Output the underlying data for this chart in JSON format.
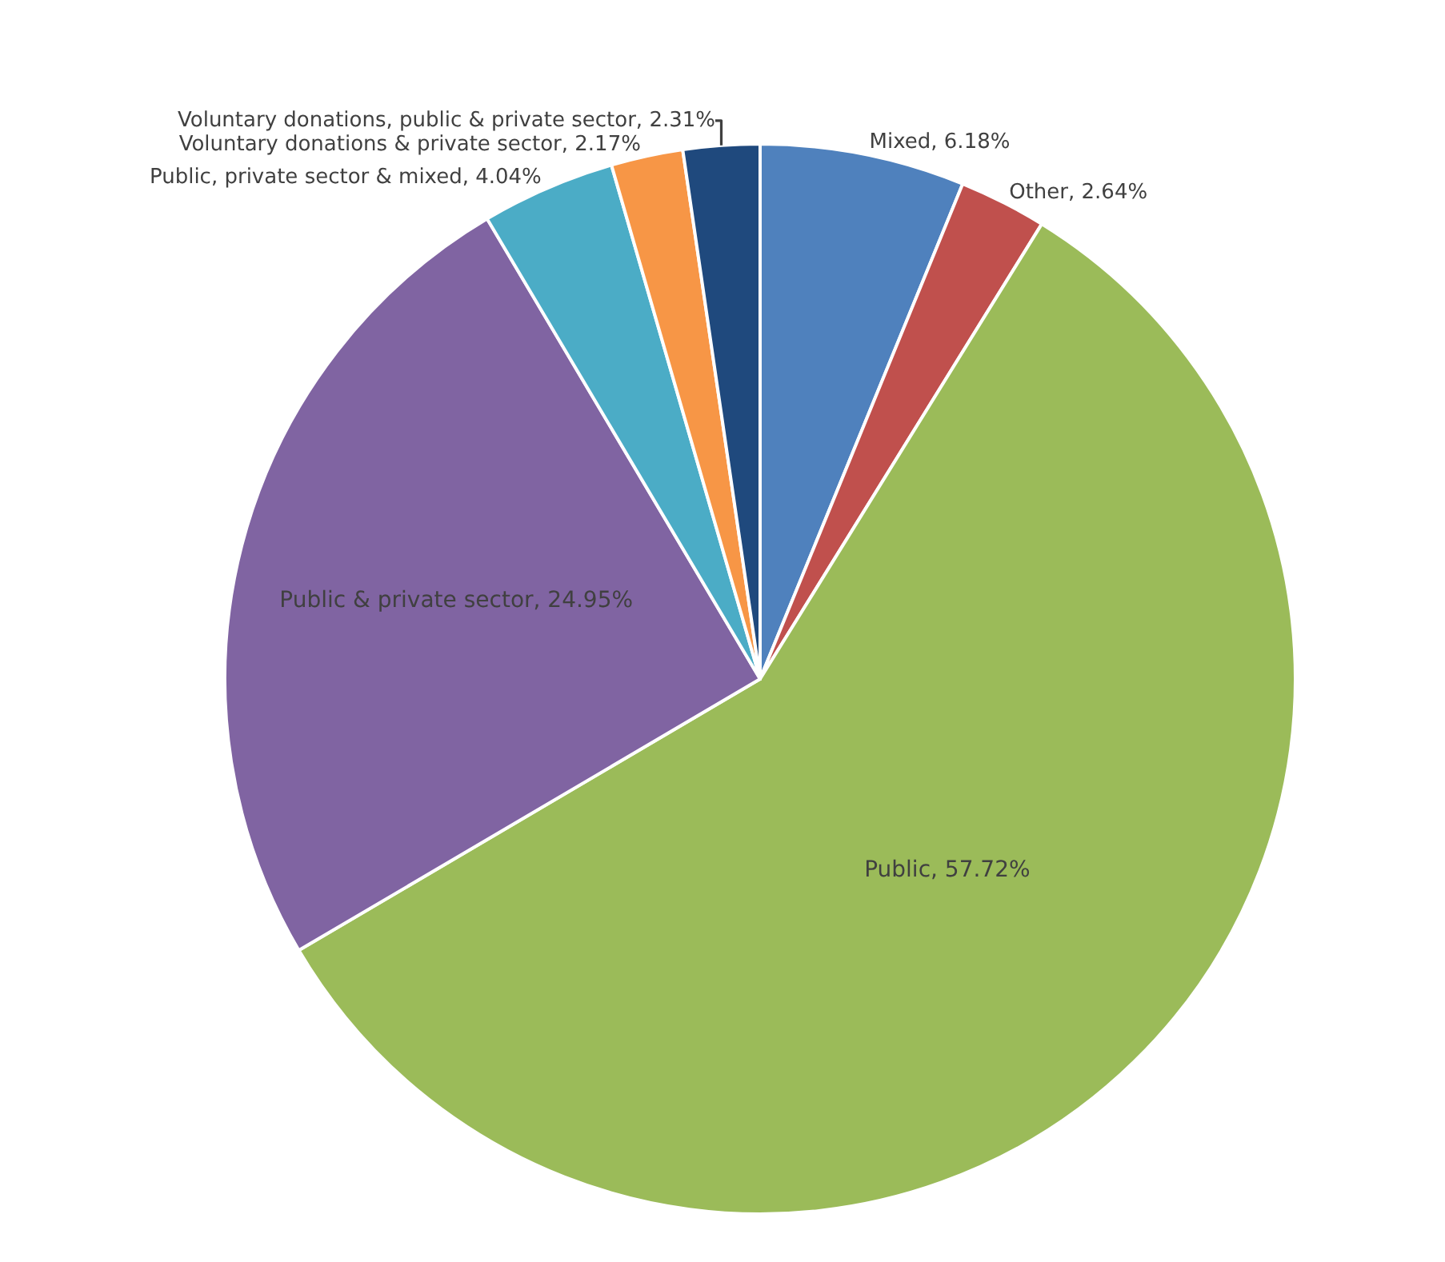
{
  "chart_data": {
    "type": "pie",
    "categories": [
      "Mixed",
      "Other",
      "Public",
      "Public & private sector",
      "Public, private sector & mixed",
      "Voluntary donations & private sector",
      "Voluntary donations, public & private sector"
    ],
    "values": [
      6.18,
      2.64,
      57.72,
      24.95,
      4.04,
      2.17,
      2.31
    ],
    "value_labels": [
      "6.18%",
      "2.64%",
      "57.72%",
      "24.95%",
      "4.04%",
      "2.17%",
      "2.31%"
    ],
    "colors": [
      "#4f81bd",
      "#c0504d",
      "#9bbb59",
      "#8064a2",
      "#4bacc6",
      "#f79646",
      "#1f497d"
    ],
    "legend": false
  }
}
